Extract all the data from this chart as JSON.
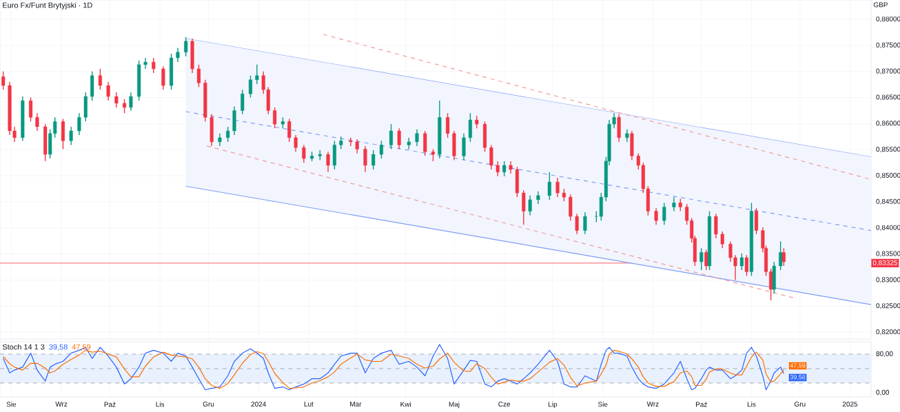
{
  "chart_data": [
    {
      "type": "candlestick",
      "title": "Euro Fx/Funt Brytyjski · 1D",
      "ylabel": "GBP",
      "grid": true,
      "tick_labels": "y",
      "xlim": [
        "2023-07-25",
        "2025-01-14"
      ],
      "ylim": [
        0.8187,
        0.8837
      ],
      "xticks": [
        {
          "value": "2023-08-01",
          "label": null
        },
        {
          "value": "2023-09-01",
          "label": null
        },
        {
          "value": "2023-10-01",
          "label": null
        },
        {
          "value": "2023-11-01",
          "label": null
        },
        {
          "value": "2023-12-01",
          "label": null
        },
        {
          "value": "2024-01-01",
          "label": null
        },
        {
          "value": "2024-02-01",
          "label": null
        },
        {
          "value": "2024-03-01",
          "label": null
        },
        {
          "value": "2024-04-01",
          "label": null
        },
        {
          "value": "2024-05-01",
          "label": null
        },
        {
          "value": "2024-06-01",
          "label": null
        },
        {
          "value": "2024-07-01",
          "label": null
        },
        {
          "value": "2024-08-01",
          "label": null
        },
        {
          "value": "2024-09-01",
          "label": null
        },
        {
          "value": "2024-10-01",
          "label": null
        },
        {
          "value": "2024-11-01",
          "label": null
        },
        {
          "value": "2024-12-01",
          "label": null
        },
        {
          "value": "2025-01-01",
          "label": null
        }
      ],
      "yticks": [
        {
          "value": 0.82,
          "label": "0,82000"
        },
        {
          "value": 0.825,
          "label": "0,82500"
        },
        {
          "value": 0.83,
          "label": "0,83000"
        },
        {
          "value": 0.835,
          "label": "0,83500"
        },
        {
          "value": 0.84,
          "label": "0,84000"
        },
        {
          "value": 0.845,
          "label": "0,84500"
        },
        {
          "value": 0.85,
          "label": "0,85000"
        },
        {
          "value": 0.855,
          "label": "0,85500"
        },
        {
          "value": 0.86,
          "label": "0,86000"
        },
        {
          "value": 0.865,
          "label": "0,86500"
        },
        {
          "value": 0.87,
          "label": "0,87000"
        },
        {
          "value": 0.875,
          "label": "0,87500"
        },
        {
          "value": 0.88,
          "label": "0,88000"
        }
      ],
      "ref_lines": [
        {
          "axis": "y",
          "value": 0.83325,
          "label": "0,83325",
          "color": "#f23645"
        }
      ],
      "colors": [
        "#f23645",
        "#f23645",
        "#f23645",
        "#089981",
        "#f23645",
        "#f23645",
        "#f23645",
        "#089981",
        "#089981",
        "#f23645",
        "#089981",
        "#089981",
        "#089981",
        "#089981",
        "#f23645",
        "#f23645",
        "#f23645",
        "#f23645",
        "#089981",
        "#089981",
        "#089981",
        "#f23645",
        "#f23645",
        "#089981",
        "#089981",
        "#089981",
        "#f23645",
        "#f23645",
        "#f23645",
        "#f23645",
        "#089981",
        "#089981",
        "#089981",
        "#089981",
        "#089981",
        "#089981",
        "#f23645",
        "#f23645",
        "#f23645",
        "#089981",
        "#f23645",
        "#f23645",
        "#f23645",
        "#089981",
        "#089981",
        "#f23645",
        "#089981",
        "#089981",
        "#f23645",
        "#f23645",
        "#f23645",
        "#089981",
        "#089981",
        "#089981",
        "#f23645",
        "#089981",
        "#089981",
        "#f23645",
        "#f23645",
        "#089981",
        "#f23645",
        "#f23645",
        "#089981",
        "#089981",
        "#f23645",
        "#f23645",
        "#f23645",
        "#f23645",
        "#089981",
        "#f23645",
        "#f23645",
        "#f23645",
        "#089981",
        "#089981",
        "#089981",
        "#f23645",
        "#f23645",
        "#f23645",
        "#f23645",
        "#089981",
        "#089981",
        "#089981",
        "#089981",
        "#089981",
        "#089981",
        "#f23645",
        "#089981",
        "#f23645",
        "#f23645",
        "#f23645",
        "#f23645",
        "#f23645",
        "#089981",
        "#089981",
        "#f23645",
        "#f23645",
        "#f23645",
        "#f23645",
        "#089981",
        "#f23645",
        "#089981",
        "#f23645",
        "#f23645",
        "#f23645",
        "#f23645",
        "#089981",
        "#f23645",
        "#089981",
        "#f23645",
        "#f23645",
        "#f23645",
        "#f23645",
        "#089981",
        "#089981",
        "#f23645"
      ],
      "x": [
        "2023-07-27",
        "2023-07-31",
        "2023-08-03",
        "2023-08-08",
        "2023-08-13",
        "2023-08-17",
        "2023-08-22",
        "2023-08-25",
        "2023-08-28",
        "2023-09-02",
        "2023-09-07",
        "2023-09-12",
        "2023-09-16",
        "2023-09-20",
        "2023-09-25",
        "2023-09-30",
        "2023-10-05",
        "2023-10-10",
        "2023-10-14",
        "2023-10-19",
        "2023-10-23",
        "2023-10-28",
        "2023-11-03",
        "2023-11-08",
        "2023-11-12",
        "2023-11-17",
        "2023-11-21",
        "2023-11-25",
        "2023-11-29",
        "2023-12-03",
        "2023-12-08",
        "2023-12-13",
        "2023-12-17",
        "2023-12-22",
        "2023-12-27",
        "2023-12-31",
        "2024-01-04",
        "2024-01-07",
        "2024-01-11",
        "2024-01-16",
        "2024-01-20",
        "2024-01-24",
        "2024-01-29",
        "2024-02-03",
        "2024-02-08",
        "2024-02-13",
        "2024-02-17",
        "2024-02-21",
        "2024-02-27",
        "2024-03-02",
        "2024-03-07",
        "2024-03-12",
        "2024-03-17",
        "2024-03-23",
        "2024-03-28",
        "2024-04-03",
        "2024-04-08",
        "2024-04-13",
        "2024-04-18",
        "2024-04-22",
        "2024-04-27",
        "2024-05-01",
        "2024-05-07",
        "2024-05-11",
        "2024-05-15",
        "2024-05-20",
        "2024-05-24",
        "2024-05-28",
        "2024-06-01",
        "2024-06-05",
        "2024-06-09",
        "2024-06-13",
        "2024-06-17",
        "2024-06-22",
        "2024-06-29",
        "2024-07-04",
        "2024-07-08",
        "2024-07-12",
        "2024-07-16",
        "2024-07-21",
        "2024-07-28",
        "2024-07-31",
        "2024-08-03",
        "2024-08-05",
        "2024-08-08",
        "2024-08-11",
        "2024-08-16",
        "2024-08-19",
        "2024-08-23",
        "2024-08-26",
        "2024-08-29",
        "2024-09-03",
        "2024-09-08",
        "2024-09-14",
        "2024-09-18",
        "2024-09-22",
        "2024-09-25",
        "2024-09-27",
        "2024-10-01",
        "2024-10-04",
        "2024-10-06",
        "2024-10-10",
        "2024-10-14",
        "2024-10-19",
        "2024-10-22",
        "2024-10-26",
        "2024-10-29",
        "2024-11-01",
        "2024-11-04",
        "2024-11-08",
        "2024-11-10",
        "2024-11-13",
        "2024-11-15",
        "2024-11-19",
        "2024-11-21"
      ],
      "ohlc": [
        [
          0.869,
          0.87,
          0.8665,
          0.8673
        ],
        [
          0.8673,
          0.868,
          0.8578,
          0.8586
        ],
        [
          0.8586,
          0.8594,
          0.8565,
          0.8573
        ],
        [
          0.8573,
          0.8652,
          0.8567,
          0.8644
        ],
        [
          0.8644,
          0.865,
          0.8604,
          0.8612
        ],
        [
          0.8612,
          0.862,
          0.8586,
          0.8594
        ],
        [
          0.8594,
          0.8599,
          0.8528,
          0.8541
        ],
        [
          0.8541,
          0.8589,
          0.8533,
          0.8581
        ],
        [
          0.8581,
          0.8612,
          0.8573,
          0.8604
        ],
        [
          0.8604,
          0.8609,
          0.8551,
          0.8567
        ],
        [
          0.8567,
          0.8594,
          0.8559,
          0.8586
        ],
        [
          0.8586,
          0.862,
          0.8578,
          0.8612
        ],
        [
          0.8612,
          0.866,
          0.8604,
          0.8652
        ],
        [
          0.8652,
          0.87,
          0.8644,
          0.8692
        ],
        [
          0.8692,
          0.8705,
          0.8665,
          0.8673
        ],
        [
          0.8673,
          0.868,
          0.8644,
          0.8652
        ],
        [
          0.8652,
          0.866,
          0.8631,
          0.8639
        ],
        [
          0.8639,
          0.8647,
          0.862,
          0.8631
        ],
        [
          0.8631,
          0.866,
          0.8625,
          0.8652
        ],
        [
          0.8652,
          0.8721,
          0.8644,
          0.8713
        ],
        [
          0.8713,
          0.8726,
          0.8705,
          0.8718
        ],
        [
          0.8718,
          0.8726,
          0.8697,
          0.8705
        ],
        [
          0.8705,
          0.871,
          0.8665,
          0.8673
        ],
        [
          0.8673,
          0.8734,
          0.8665,
          0.8726
        ],
        [
          0.8726,
          0.8745,
          0.8718,
          0.8737
        ],
        [
          0.8737,
          0.8766,
          0.8729,
          0.8758
        ],
        [
          0.8758,
          0.8763,
          0.8697,
          0.8705
        ],
        [
          0.8705,
          0.8713,
          0.867,
          0.8678
        ],
        [
          0.8678,
          0.8684,
          0.8604,
          0.8612
        ],
        [
          0.8612,
          0.8618,
          0.8557,
          0.8565
        ],
        [
          0.8565,
          0.8581,
          0.8557,
          0.8573
        ],
        [
          0.8573,
          0.8594,
          0.8565,
          0.8586
        ],
        [
          0.8586,
          0.8633,
          0.8578,
          0.8625
        ],
        [
          0.8625,
          0.8665,
          0.8618,
          0.8657
        ],
        [
          0.8657,
          0.8692,
          0.865,
          0.8684
        ],
        [
          0.8684,
          0.8713,
          0.8676,
          0.8692
        ],
        [
          0.8692,
          0.87,
          0.8657,
          0.8665
        ],
        [
          0.8665,
          0.867,
          0.8618,
          0.8625
        ],
        [
          0.8625,
          0.8631,
          0.8591,
          0.8599
        ],
        [
          0.8599,
          0.8612,
          0.8591,
          0.8604
        ],
        [
          0.8604,
          0.8609,
          0.8565,
          0.8573
        ],
        [
          0.8573,
          0.8578,
          0.8546,
          0.8554
        ],
        [
          0.8554,
          0.8559,
          0.8525,
          0.8533
        ],
        [
          0.8533,
          0.8546,
          0.8528,
          0.8538
        ],
        [
          0.8538,
          0.8549,
          0.853,
          0.8541
        ],
        [
          0.8541,
          0.8546,
          0.8507,
          0.852
        ],
        [
          0.852,
          0.8567,
          0.8512,
          0.8559
        ],
        [
          0.8559,
          0.8575,
          0.8551,
          0.8567
        ],
        [
          0.8567,
          0.8573,
          0.8557,
          0.8565
        ],
        [
          0.8565,
          0.857,
          0.8543,
          0.8551
        ],
        [
          0.8551,
          0.8557,
          0.8507,
          0.852
        ],
        [
          0.852,
          0.8549,
          0.8512,
          0.8541
        ],
        [
          0.8541,
          0.8567,
          0.8533,
          0.8559
        ],
        [
          0.8559,
          0.8599,
          0.8551,
          0.8586
        ],
        [
          0.8586,
          0.8591,
          0.8551,
          0.8559
        ],
        [
          0.8559,
          0.8573,
          0.8551,
          0.8565
        ],
        [
          0.8565,
          0.8589,
          0.8557,
          0.8581
        ],
        [
          0.8581,
          0.8586,
          0.8538,
          0.8546
        ],
        [
          0.8546,
          0.8551,
          0.8528,
          0.8541
        ],
        [
          0.8541,
          0.8644,
          0.8533,
          0.8612
        ],
        [
          0.8612,
          0.862,
          0.8573,
          0.8581
        ],
        [
          0.8581,
          0.8586,
          0.853,
          0.8538
        ],
        [
          0.8538,
          0.8581,
          0.853,
          0.8573
        ],
        [
          0.8573,
          0.862,
          0.8565,
          0.8607
        ],
        [
          0.8607,
          0.8615,
          0.8591,
          0.8599
        ],
        [
          0.8599,
          0.8604,
          0.8546,
          0.8554
        ],
        [
          0.8554,
          0.8559,
          0.8512,
          0.852
        ],
        [
          0.852,
          0.8528,
          0.8499,
          0.8507
        ],
        [
          0.8507,
          0.8528,
          0.8499,
          0.852
        ],
        [
          0.852,
          0.8528,
          0.8504,
          0.8512
        ],
        [
          0.8512,
          0.8517,
          0.8459,
          0.8467
        ],
        [
          0.8467,
          0.8472,
          0.8406,
          0.8432
        ],
        [
          0.8432,
          0.8462,
          0.8424,
          0.8454
        ],
        [
          0.8454,
          0.847,
          0.8446,
          0.8462
        ],
        [
          0.8462,
          0.8507,
          0.8454,
          0.8488
        ],
        [
          0.8488,
          0.8496,
          0.8459,
          0.8467
        ],
        [
          0.8467,
          0.8475,
          0.8451,
          0.8459
        ],
        [
          0.8459,
          0.8464,
          0.8414,
          0.8422
        ],
        [
          0.8422,
          0.8427,
          0.8388,
          0.8395
        ],
        [
          0.8395,
          0.843,
          0.8388,
          0.8422
        ],
        [
          0.8422,
          0.8432,
          0.8411,
          0.8422
        ],
        [
          0.8422,
          0.8467,
          0.8414,
          0.8459
        ],
        [
          0.8459,
          0.8536,
          0.8451,
          0.8528
        ],
        [
          0.8528,
          0.8607,
          0.852,
          0.8599
        ],
        [
          0.8599,
          0.862,
          0.8591,
          0.8612
        ],
        [
          0.8612,
          0.8618,
          0.8565,
          0.8573
        ],
        [
          0.8573,
          0.8589,
          0.8565,
          0.8581
        ],
        [
          0.8581,
          0.8586,
          0.853,
          0.8538
        ],
        [
          0.8538,
          0.8543,
          0.8512,
          0.852
        ],
        [
          0.852,
          0.8525,
          0.8467,
          0.8475
        ],
        [
          0.8475,
          0.848,
          0.8424,
          0.8432
        ],
        [
          0.8432,
          0.8438,
          0.8406,
          0.8414
        ],
        [
          0.8414,
          0.8448,
          0.8406,
          0.844
        ],
        [
          0.844,
          0.8459,
          0.8432,
          0.8448
        ],
        [
          0.8448,
          0.8456,
          0.8432,
          0.844
        ],
        [
          0.844,
          0.8446,
          0.8406,
          0.8414
        ],
        [
          0.8414,
          0.8419,
          0.8372,
          0.838
        ],
        [
          0.838,
          0.8385,
          0.8327,
          0.8335
        ],
        [
          0.8335,
          0.8361,
          0.8319,
          0.8353
        ],
        [
          0.8353,
          0.8358,
          0.8319,
          0.8327
        ],
        [
          0.8327,
          0.8432,
          0.8319,
          0.8422
        ],
        [
          0.8422,
          0.8427,
          0.838,
          0.8388
        ],
        [
          0.8388,
          0.8393,
          0.8361,
          0.8369
        ],
        [
          0.8369,
          0.8374,
          0.8335,
          0.8343
        ],
        [
          0.8343,
          0.8348,
          0.83,
          0.8327
        ],
        [
          0.8327,
          0.8351,
          0.8319,
          0.8343
        ],
        [
          0.8343,
          0.8348,
          0.8308,
          0.8316
        ],
        [
          0.8316,
          0.8448,
          0.8308,
          0.8432
        ],
        [
          0.8432,
          0.8438,
          0.8388,
          0.8395
        ],
        [
          0.8395,
          0.8401,
          0.8353,
          0.8361
        ],
        [
          0.8361,
          0.8366,
          0.8308,
          0.8316
        ],
        [
          0.8316,
          0.8322,
          0.8261,
          0.8282
        ],
        [
          0.8282,
          0.8335,
          0.8274,
          0.8327
        ],
        [
          0.8327,
          0.8374,
          0.8319,
          0.8353
        ],
        [
          0.8353,
          0.8361,
          0.8327,
          0.8335
        ]
      ],
      "series": [
        {
          "type": "line",
          "color": "#7f9cf5",
          "line_style": "solid",
          "x": [
            "2023-11-17",
            "2025-01-14"
          ],
          "values": [
            0.8763,
            0.8536
          ]
        },
        {
          "type": "line",
          "color": "#7f9cf5",
          "line_style": "dashed",
          "x": [
            "2023-11-17",
            "2025-01-14"
          ],
          "values": [
            0.8623,
            0.8395
          ],
          "lower": [
            0.848,
            0.8253
          ],
          "upper": [
            0.8763,
            0.8536
          ]
        },
        {
          "type": "line",
          "color": "#7f9cf5",
          "line_style": "solid",
          "x": [
            "2023-11-17",
            "2025-01-14"
          ],
          "values": [
            0.848,
            0.8253
          ]
        },
        {
          "type": "line",
          "color": "#f59a9a",
          "line_style": "dashed",
          "x": [
            "2024-02-10",
            "2025-01-14"
          ],
          "values": [
            0.8771,
            0.8493
          ]
        },
        {
          "type": "line",
          "color": "#f59a9a",
          "line_style": "dashed",
          "x": [
            "2023-11-30",
            "2024-11-27"
          ],
          "values": [
            0.8557,
            0.8266
          ]
        }
      ]
    },
    {
      "type": "line",
      "title": "Stoch 14 1 3",
      "annotations": [
        "39,58",
        "47,59"
      ],
      "grid": "x",
      "xlim": [
        "2023-07-25",
        "2025-01-14"
      ],
      "ylim": [
        -8.6,
        105.7
      ],
      "xticks": [
        {
          "value": "2023-08-01",
          "label": "Sie"
        },
        {
          "value": "2023-09-01",
          "label": "Wrz"
        },
        {
          "value": "2023-10-01",
          "label": "Paź"
        },
        {
          "value": "2023-11-01",
          "label": "Lis"
        },
        {
          "value": "2023-12-01",
          "label": "Gru"
        },
        {
          "value": "2024-01-01",
          "label": "2024"
        },
        {
          "value": "2024-02-01",
          "label": "Lut"
        },
        {
          "value": "2024-03-01",
          "label": "Mar"
        },
        {
          "value": "2024-04-01",
          "label": "Kwi"
        },
        {
          "value": "2024-05-01",
          "label": "Maj"
        },
        {
          "value": "2024-06-01",
          "label": "Cze"
        },
        {
          "value": "2024-07-01",
          "label": "Lip"
        },
        {
          "value": "2024-08-01",
          "label": "Sie"
        },
        {
          "value": "2024-09-01",
          "label": "Wrz"
        },
        {
          "value": "2024-10-01",
          "label": "Paź"
        },
        {
          "value": "2024-11-01",
          "label": "Lis"
        },
        {
          "value": "2024-12-01",
          "label": "Gru"
        },
        {
          "value": "2025-01-01",
          "label": "2025"
        }
      ],
      "yticks": [
        {
          "value": 0,
          "label": "0,00"
        },
        {
          "value": 80,
          "label": "80,00"
        }
      ],
      "bands": [
        {
          "axis": "y",
          "from": 20,
          "to": 80,
          "color": "#e8f1fd"
        }
      ],
      "ref_lines": [
        {
          "axis": "y",
          "value": 20,
          "color": "#9598a1",
          "line_style": "dashed"
        },
        {
          "axis": "y",
          "value": 50,
          "color": "#9598a1",
          "line_style": "dashed"
        },
        {
          "axis": "y",
          "value": 80,
          "color": "#9598a1",
          "line_style": "dashed"
        }
      ],
      "x": [
        "2023-07-27",
        "2023-07-31",
        "2023-08-03",
        "2023-08-08",
        "2023-08-13",
        "2023-08-17",
        "2023-08-22",
        "2023-08-25",
        "2023-08-28",
        "2023-09-02",
        "2023-09-07",
        "2023-09-12",
        "2023-09-16",
        "2023-09-20",
        "2023-09-25",
        "2023-09-30",
        "2023-10-05",
        "2023-10-10",
        "2023-10-14",
        "2023-10-19",
        "2023-10-23",
        "2023-10-28",
        "2023-11-03",
        "2023-11-08",
        "2023-11-12",
        "2023-11-17",
        "2023-11-21",
        "2023-11-25",
        "2023-11-29",
        "2023-12-03",
        "2023-12-08",
        "2023-12-13",
        "2023-12-17",
        "2023-12-22",
        "2023-12-27",
        "2023-12-31",
        "2024-01-04",
        "2024-01-07",
        "2024-01-11",
        "2024-01-16",
        "2024-01-20",
        "2024-01-24",
        "2024-01-29",
        "2024-02-03",
        "2024-02-08",
        "2024-02-13",
        "2024-02-17",
        "2024-02-21",
        "2024-02-27",
        "2024-03-02",
        "2024-03-07",
        "2024-03-12",
        "2024-03-17",
        "2024-03-23",
        "2024-03-28",
        "2024-04-03",
        "2024-04-08",
        "2024-04-13",
        "2024-04-18",
        "2024-04-22",
        "2024-04-27",
        "2024-05-01",
        "2024-05-07",
        "2024-05-11",
        "2024-05-15",
        "2024-05-20",
        "2024-05-24",
        "2024-05-28",
        "2024-06-01",
        "2024-06-05",
        "2024-06-09",
        "2024-06-13",
        "2024-06-17",
        "2024-06-22",
        "2024-06-29",
        "2024-07-04",
        "2024-07-08",
        "2024-07-12",
        "2024-07-16",
        "2024-07-21",
        "2024-07-28",
        "2024-07-31",
        "2024-08-03",
        "2024-08-05",
        "2024-08-08",
        "2024-08-11",
        "2024-08-16",
        "2024-08-19",
        "2024-08-23",
        "2024-08-26",
        "2024-08-29",
        "2024-09-03",
        "2024-09-08",
        "2024-09-14",
        "2024-09-18",
        "2024-09-22",
        "2024-09-25",
        "2024-09-27",
        "2024-10-01",
        "2024-10-04",
        "2024-10-06",
        "2024-10-10",
        "2024-10-14",
        "2024-10-19",
        "2024-10-22",
        "2024-10-26",
        "2024-10-29",
        "2024-11-01",
        "2024-11-04",
        "2024-11-08",
        "2024-11-10",
        "2024-11-13",
        "2024-11-15",
        "2024-11-19",
        "2024-11-21"
      ],
      "series": [
        {
          "color": "#2962ff",
          "values": [
            71,
            41,
            47,
            53,
            82,
            47,
            24,
            53,
            59,
            65,
            82,
            88,
            94,
            71,
            94,
            76,
            53,
            18,
            29,
            53,
            82,
            88,
            82,
            65,
            82,
            76,
            53,
            29,
            6,
            9,
            12,
            35,
            65,
            82,
            91,
            82,
            71,
            41,
            9,
            12,
            6,
            12,
            18,
            29,
            29,
            41,
            59,
            76,
            82,
            82,
            41,
            71,
            82,
            88,
            59,
            65,
            53,
            35,
            76,
            100,
            71,
            18,
            47,
            67,
            65,
            18,
            12,
            24,
            29,
            24,
            18,
            29,
            41,
            59,
            88,
            65,
            18,
            12,
            12,
            35,
            24,
            59,
            88,
            94,
            82,
            82,
            76,
            53,
            29,
            18,
            12,
            9,
            18,
            41,
            65,
            29,
            6,
            9,
            29,
            47,
            53,
            47,
            47,
            29,
            35,
            47,
            82,
            94,
            76,
            35,
            6,
            24,
            41,
            53,
            39.58
          ],
          "value_labels": [
            null,
            null,
            null,
            null,
            null,
            null,
            null,
            null,
            null,
            null,
            null,
            null,
            null,
            null,
            null,
            null,
            null,
            null,
            null,
            null,
            null,
            null,
            null,
            null,
            null,
            null,
            null,
            null,
            null,
            null,
            null,
            null,
            null,
            null,
            null,
            null,
            null,
            null,
            null,
            null,
            null,
            null,
            null,
            null,
            null,
            null,
            null,
            null,
            null,
            null,
            null,
            null,
            null,
            null,
            null,
            null,
            null,
            null,
            null,
            null,
            null,
            null,
            null,
            null,
            null,
            null,
            null,
            null,
            null,
            null,
            null,
            null,
            null,
            null,
            null,
            null,
            null,
            null,
            null,
            null,
            null,
            null,
            null,
            null,
            null,
            null,
            null,
            null,
            null,
            null,
            null,
            null,
            null,
            null,
            null,
            null,
            null,
            null,
            null,
            null,
            null,
            null,
            null,
            null,
            null,
            null,
            null,
            null,
            null,
            null,
            null,
            null,
            null,
            null,
            "39,58"
          ]
        },
        {
          "color": "#ff6d00",
          "values": [
            75,
            60,
            53,
            47,
            61,
            61,
            51,
            41,
            45,
            59,
            69,
            78,
            88,
            84,
            86,
            80,
            74,
            49,
            33,
            33,
            55,
            74,
            84,
            78,
            76,
            74,
            70,
            53,
            29,
            15,
            9,
            19,
            37,
            61,
            79,
            85,
            81,
            65,
            40,
            21,
            9,
            10,
            12,
            20,
            25,
            33,
            43,
            59,
            72,
            80,
            68,
            65,
            65,
            80,
            76,
            71,
            59,
            51,
            55,
            70,
            82,
            63,
            45,
            44,
            60,
            50,
            32,
            18,
            22,
            26,
            24,
            24,
            29,
            43,
            63,
            71,
            57,
            32,
            14,
            20,
            24,
            39,
            57,
            80,
            88,
            86,
            80,
            70,
            53,
            33,
            20,
            13,
            13,
            23,
            41,
            45,
            33,
            15,
            15,
            28,
            43,
            49,
            49,
            41,
            37,
            37,
            55,
            74,
            84,
            68,
            39,
            22,
            24,
            39,
            47.59
          ],
          "value_labels": [
            null,
            null,
            null,
            null,
            null,
            null,
            null,
            null,
            null,
            null,
            null,
            null,
            null,
            null,
            null,
            null,
            null,
            null,
            null,
            null,
            null,
            null,
            null,
            null,
            null,
            null,
            null,
            null,
            null,
            null,
            null,
            null,
            null,
            null,
            null,
            null,
            null,
            null,
            null,
            null,
            null,
            null,
            null,
            null,
            null,
            null,
            null,
            null,
            null,
            null,
            null,
            null,
            null,
            null,
            null,
            null,
            null,
            null,
            null,
            null,
            null,
            null,
            null,
            null,
            null,
            null,
            null,
            null,
            null,
            null,
            null,
            null,
            null,
            null,
            null,
            null,
            null,
            null,
            null,
            null,
            null,
            null,
            null,
            null,
            null,
            null,
            null,
            null,
            null,
            null,
            null,
            null,
            null,
            null,
            null,
            null,
            null,
            null,
            null,
            null,
            null,
            null,
            null,
            null,
            null,
            null,
            null,
            null,
            null,
            null,
            null,
            null,
            null,
            null,
            "47,59"
          ]
        }
      ]
    }
  ]
}
